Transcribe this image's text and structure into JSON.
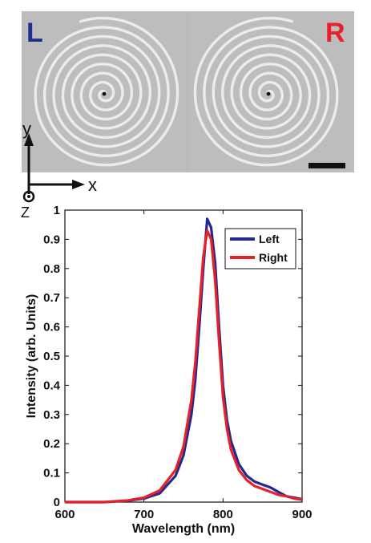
{
  "sem_panel": {
    "left_label": "L",
    "right_label": "R",
    "left_label_color": "#1f2f8f",
    "right_label_color": "#e8202a",
    "background_color": "#bdbdbd",
    "spiral_color": "#ececec",
    "scale_bar": true
  },
  "axes_inset": {
    "y_label": "y",
    "x_label": "x",
    "z_label": "Z"
  },
  "chart_data": {
    "type": "line",
    "xlabel": "Wavelength (nm)",
    "ylabel": "Intensity (arb. Units)",
    "xlim": [
      600,
      900
    ],
    "ylim": [
      0,
      1
    ],
    "xticks": [
      "600",
      "700",
      "800",
      "900"
    ],
    "yticks": [
      "0",
      "0.1",
      "0.2",
      "0.3",
      "0.4",
      "0.5",
      "0.6",
      "0.7",
      "0.8",
      "0.9",
      "1"
    ],
    "legend_position": "top-right",
    "grid": false,
    "series": [
      {
        "name": "Left",
        "color": "#23298f",
        "x": [
          600,
          650,
          680,
          700,
          720,
          740,
          750,
          760,
          765,
          770,
          775,
          780,
          785,
          790,
          795,
          800,
          805,
          810,
          820,
          830,
          840,
          850,
          860,
          870,
          880,
          890,
          900
        ],
        "y": [
          0.0,
          0.0,
          0.005,
          0.012,
          0.03,
          0.09,
          0.16,
          0.3,
          0.42,
          0.6,
          0.8,
          0.97,
          0.94,
          0.82,
          0.6,
          0.4,
          0.28,
          0.21,
          0.13,
          0.09,
          0.07,
          0.06,
          0.05,
          0.035,
          0.02,
          0.015,
          0.01
        ]
      },
      {
        "name": "Right",
        "color": "#e8202a",
        "x": [
          600,
          650,
          680,
          700,
          720,
          740,
          750,
          760,
          765,
          770,
          775,
          780,
          785,
          790,
          795,
          800,
          805,
          810,
          820,
          830,
          840,
          850,
          860,
          870,
          880,
          890,
          900
        ],
        "y": [
          0.0,
          0.0,
          0.006,
          0.015,
          0.04,
          0.11,
          0.19,
          0.35,
          0.48,
          0.66,
          0.84,
          0.93,
          0.9,
          0.76,
          0.55,
          0.36,
          0.25,
          0.18,
          0.11,
          0.075,
          0.055,
          0.045,
          0.035,
          0.025,
          0.02,
          0.012,
          0.008
        ]
      }
    ]
  }
}
